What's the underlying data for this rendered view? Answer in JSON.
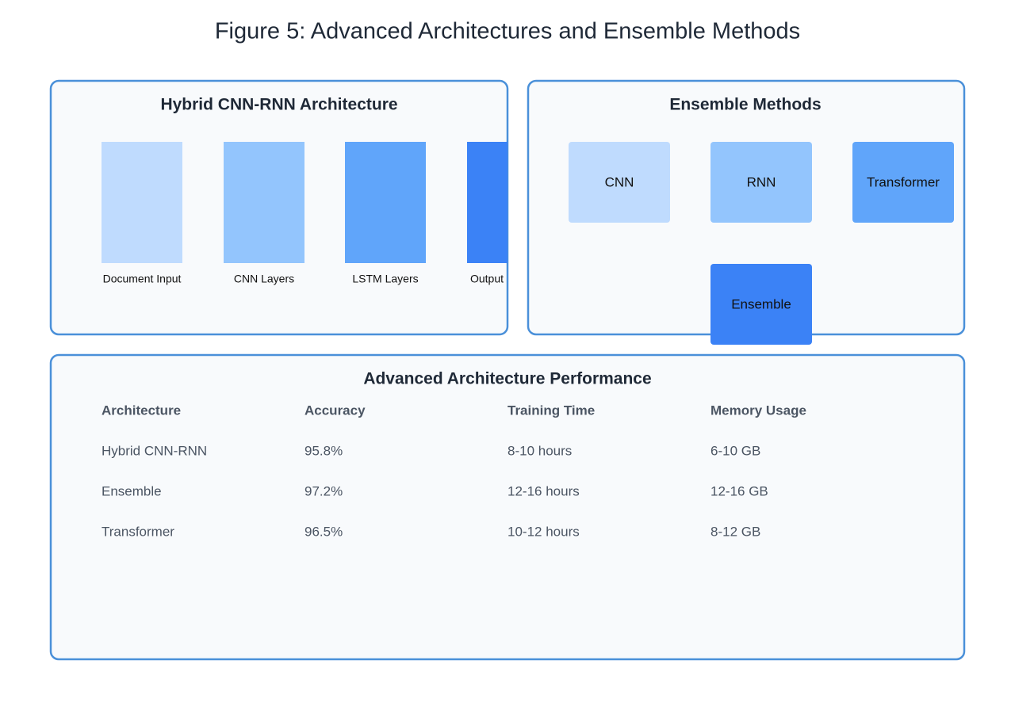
{
  "title": "Figure 5: Advanced Architectures and Ensemble Methods",
  "hybrid": {
    "title": "Hybrid CNN-RNN Architecture",
    "stages": [
      "Document Input",
      "CNN Layers",
      "LSTM Layers",
      "Output"
    ]
  },
  "ensemble": {
    "title": "Ensemble Methods",
    "models": [
      "CNN",
      "RNN",
      "Transformer"
    ],
    "combined": "Ensemble"
  },
  "performance": {
    "title": "Advanced Architecture Performance",
    "table": {
      "header": [
        "Architecture",
        "Accuracy",
        "Training Time",
        "Memory Usage"
      ],
      "rows": [
        [
          "Hybrid CNN-RNN",
          "95.8%",
          "8-10 hours",
          "6-10 GB"
        ],
        [
          "Ensemble",
          "97.2%",
          "12-16 hours",
          "12-16 GB"
        ],
        [
          "Transformer",
          "96.5%",
          "10-12 hours",
          "8-12 GB"
        ]
      ]
    }
  }
}
